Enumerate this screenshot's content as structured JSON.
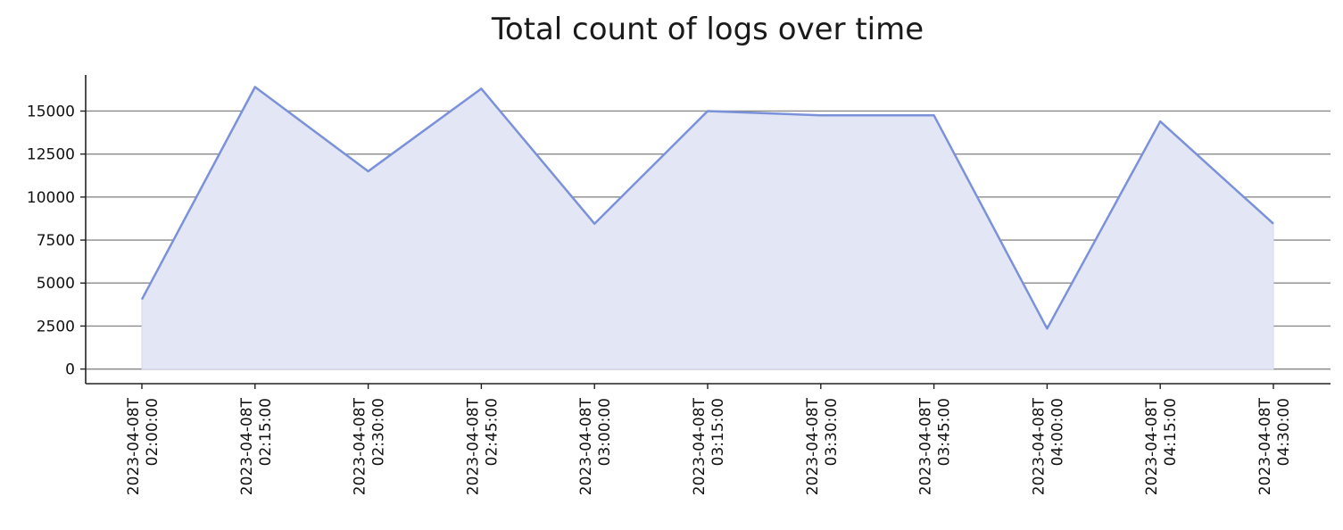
{
  "chart_data": {
    "type": "area",
    "title": "Total count of logs over time",
    "xlabel": "",
    "ylabel": "",
    "x": [
      "2023-04-08T 02:00:00",
      "2023-04-08T 02:15:00",
      "2023-04-08T 02:30:00",
      "2023-04-08T 02:45:00",
      "2023-04-08T 03:00:00",
      "2023-04-08T 03:15:00",
      "2023-04-08T 03:30:00",
      "2023-04-08T 03:45:00",
      "2023-04-08T 04:00:00",
      "2023-04-08T 04:15:00",
      "2023-04-08T 04:30:00"
    ],
    "x_tick_labels": [
      [
        "2023-04-08T",
        "02:00:00"
      ],
      [
        "2023-04-08T",
        "02:15:00"
      ],
      [
        "2023-04-08T",
        "02:30:00"
      ],
      [
        "2023-04-08T",
        "02:45:00"
      ],
      [
        "2023-04-08T",
        "03:00:00"
      ],
      [
        "2023-04-08T",
        "03:15:00"
      ],
      [
        "2023-04-08T",
        "03:30:00"
      ],
      [
        "2023-04-08T",
        "03:45:00"
      ],
      [
        "2023-04-08T",
        "04:00:00"
      ],
      [
        "2023-04-08T",
        "04:15:00"
      ],
      [
        "2023-04-08T",
        "04:30:00"
      ]
    ],
    "series": [
      {
        "values": [
          4050,
          16400,
          11500,
          16300,
          8450,
          15000,
          14750,
          14750,
          2350,
          14400,
          8450
        ]
      }
    ],
    "yticks": [
      0,
      2500,
      5000,
      7500,
      10000,
      12500,
      15000
    ],
    "ylim": [
      -850,
      17100
    ],
    "grid": "horizontal",
    "legend": "none",
    "colors": {
      "line": "#7b91d9",
      "fill": "#e3e6f5",
      "grid": "#8a8a8a",
      "axis": "#222222"
    }
  }
}
